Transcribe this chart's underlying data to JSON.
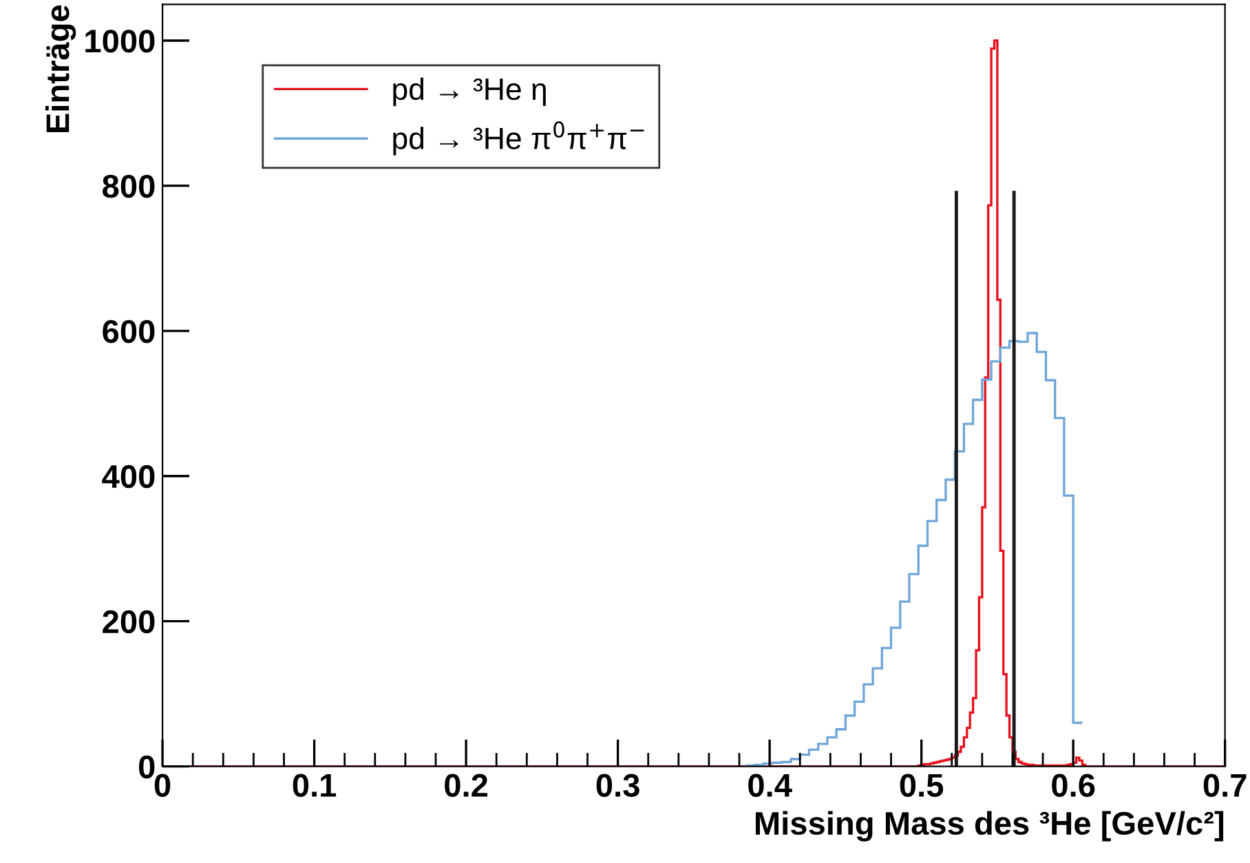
{
  "chart_data": {
    "type": "histogram",
    "xlabel": "Missing Mass des ³He [GeV/c²]",
    "ylabel": "Einträge",
    "xlim": [
      0,
      0.7
    ],
    "xticks": [
      0,
      0.1,
      0.2,
      0.3,
      0.4,
      0.5,
      0.6,
      0.7
    ],
    "ylim": [
      0,
      1050
    ],
    "yticks": [
      0,
      200,
      400,
      600,
      800,
      1000
    ],
    "legend": "top left",
    "grid": false,
    "series": [
      {
        "name": "pd → ³He η",
        "color": "#e8101c",
        "bins": [
          0,
          0.498,
          0.5,
          0.502,
          0.504,
          0.506,
          0.508,
          0.51,
          0.512,
          0.514,
          0.516,
          0.518,
          0.52,
          0.522,
          0.524,
          0.526,
          0.528,
          0.53,
          0.532,
          0.534,
          0.536,
          0.538,
          0.54,
          0.542,
          0.544,
          0.546,
          0.548,
          0.55,
          0.552,
          0.554,
          0.556,
          0.558,
          0.56,
          0.562,
          0.564,
          0.566,
          0.568,
          0.57,
          0.572,
          0.574,
          0.576,
          0.578,
          0.58,
          0.582,
          0.584,
          0.586,
          0.588,
          0.59,
          0.592,
          0.594,
          0.596,
          0.598,
          0.6,
          0.602,
          0.604,
          0.606,
          0.608,
          0.7
        ],
        "values": [
          0,
          1,
          2,
          3,
          3,
          4,
          5,
          6,
          7,
          8,
          9,
          10,
          12,
          15,
          20,
          27,
          40,
          53,
          74,
          94,
          160,
          233,
          357,
          536,
          773,
          989,
          1000,
          643,
          297,
          127,
          70,
          40,
          20,
          10,
          6,
          4,
          3,
          2,
          2,
          1,
          1,
          1,
          1,
          1,
          1,
          1,
          1,
          1,
          1,
          1,
          2,
          3,
          5,
          12,
          8,
          2,
          0
        ]
      },
      {
        "name": "pd → ³He π$^{0}$π$^{+}$π$^{−}$",
        "color": "#6fa6d8",
        "bins": [
          0.384,
          0.39,
          0.396,
          0.402,
          0.408,
          0.414,
          0.42,
          0.426,
          0.432,
          0.438,
          0.444,
          0.45,
          0.456,
          0.462,
          0.468,
          0.474,
          0.48,
          0.486,
          0.492,
          0.498,
          0.504,
          0.51,
          0.516,
          0.522,
          0.528,
          0.534,
          0.54,
          0.546,
          0.552,
          0.558,
          0.564,
          0.57,
          0.576,
          0.582,
          0.588,
          0.594,
          0.6,
          0.606
        ],
        "values": [
          1,
          2,
          4,
          5,
          6,
          10,
          16,
          23,
          31,
          40,
          51,
          70,
          89,
          113,
          135,
          163,
          191,
          227,
          265,
          304,
          338,
          367,
          395,
          434,
          472,
          505,
          533,
          558,
          577,
          586,
          585,
          597,
          571,
          532,
          480,
          373,
          60
        ]
      },
      {
        "type": "bar",
        "color": "#1a1a1a",
        "x": [
          0.523,
          0.561
        ],
        "values": [
          793,
          793
        ]
      }
    ]
  }
}
